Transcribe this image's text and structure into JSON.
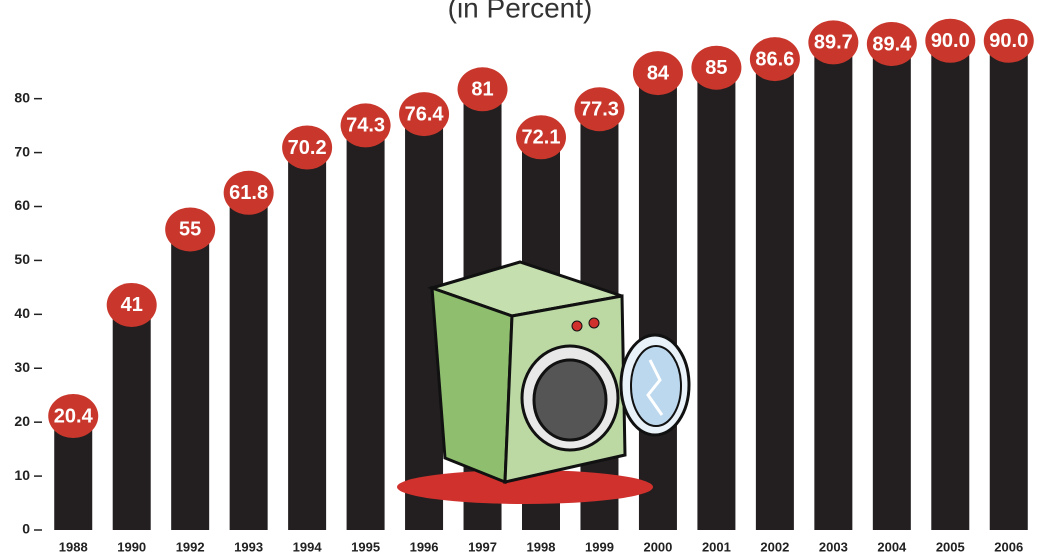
{
  "chart_data": {
    "type": "bar",
    "title": "(in Percent)",
    "categories": [
      "1988",
      "1990",
      "1992",
      "1993",
      "1994",
      "1995",
      "1996",
      "1997",
      "1998",
      "1999",
      "2000",
      "2001",
      "2002",
      "2003",
      "2004",
      "2005",
      "2006"
    ],
    "values": [
      20.4,
      41,
      55,
      61.8,
      70.2,
      74.3,
      76.4,
      81,
      72.1,
      77.3,
      84,
      85,
      86.6,
      89.7,
      89.4,
      90,
      90
    ],
    "value_labels": [
      "20.4",
      "41",
      "55",
      "61.8",
      "70.2",
      "74.3",
      "76.4",
      "81",
      "72.1",
      "77.3",
      "84",
      "85",
      "86.6",
      "89.7",
      "89.4",
      "90.0",
      "90.0"
    ],
    "color": "#231f20",
    "label_color": "#c9372c",
    "ylim": [
      0,
      98.3
    ],
    "yticks": [
      0,
      10,
      20,
      30,
      40,
      50,
      60,
      70,
      80
    ],
    "grid": false
  }
}
